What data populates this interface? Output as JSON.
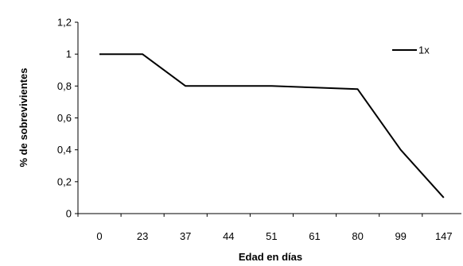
{
  "chart_data": {
    "type": "line",
    "categories": [
      "0",
      "23",
      "37",
      "44",
      "51",
      "61",
      "80",
      "99",
      "147"
    ],
    "series": [
      {
        "name": "1x",
        "values": [
          1.0,
          1.0,
          0.8,
          0.8,
          0.8,
          0.79,
          0.78,
          0.4,
          0.1
        ],
        "color": "#000000"
      }
    ],
    "xlabel": "Edad en días",
    "ylabel": "% de sobrevivientes",
    "ylim": [
      0,
      1.2
    ],
    "yticks": [
      0,
      0.2,
      0.4,
      0.6,
      0.8,
      1.0,
      1.2
    ],
    "ytick_labels": [
      "0",
      "0,2",
      "0,4",
      "0,6",
      "0,8",
      "1",
      "1,2"
    ],
    "grid": false,
    "legend_position": "top-right"
  }
}
